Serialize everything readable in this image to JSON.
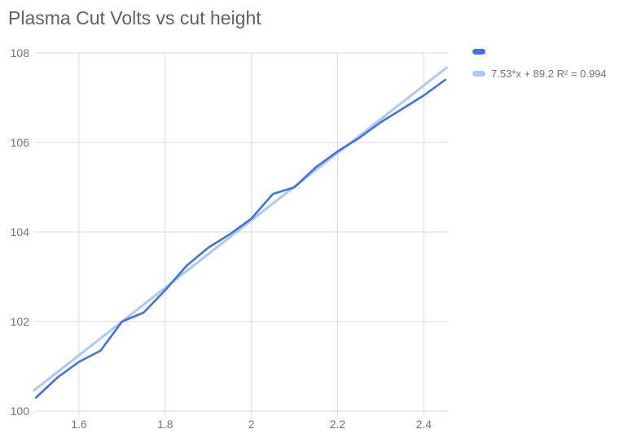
{
  "chart": {
    "title": "Plasma Cut Volts vs cut height",
    "legend": {
      "series_label": "",
      "trendline_label": "7.53*x + 89.2 R² = 0.994"
    }
  },
  "chart_data": {
    "type": "line",
    "title": "Plasma Cut Volts vs cut height",
    "xlabel": "",
    "ylabel": "",
    "xlim": [
      1.496,
      2.458
    ],
    "ylim": [
      100,
      108
    ],
    "grid": true,
    "legend_position": "top-right",
    "x_ticks": {
      "values": [
        1.6,
        1.8,
        2,
        2.2,
        2.4
      ],
      "labels": [
        "1.6",
        "1.8",
        "2",
        "2.2",
        "2.4"
      ]
    },
    "y_ticks": {
      "values": [
        100,
        102,
        104,
        106,
        108
      ],
      "labels": [
        "100",
        "102",
        "104",
        "106",
        "108"
      ]
    },
    "x": [
      1.5,
      1.55,
      1.6,
      1.65,
      1.7,
      1.75,
      1.8,
      1.85,
      1.9,
      1.95,
      2.0,
      2.05,
      2.1,
      2.15,
      2.2,
      2.25,
      2.3,
      2.35,
      2.4,
      2.45
    ],
    "series": [
      {
        "name": "",
        "color": "#3E73E0",
        "values": [
          100.3,
          100.75,
          101.1,
          101.35,
          102.0,
          102.2,
          102.7,
          103.25,
          103.65,
          103.95,
          104.3,
          104.85,
          105.0,
          105.45,
          105.8,
          106.1,
          106.45,
          106.75,
          107.05,
          107.4
        ]
      }
    ],
    "trendline": {
      "label": "7.53*x + 89.2 R² = 0.994",
      "slope": 7.53,
      "intercept": 89.2,
      "r2": 0.994,
      "color": "#ABC8F7",
      "x_range": [
        1.496,
        2.453
      ]
    },
    "colors": {
      "gridline": "#DADADA",
      "tick_label": "#757575",
      "title": "#616161"
    }
  }
}
